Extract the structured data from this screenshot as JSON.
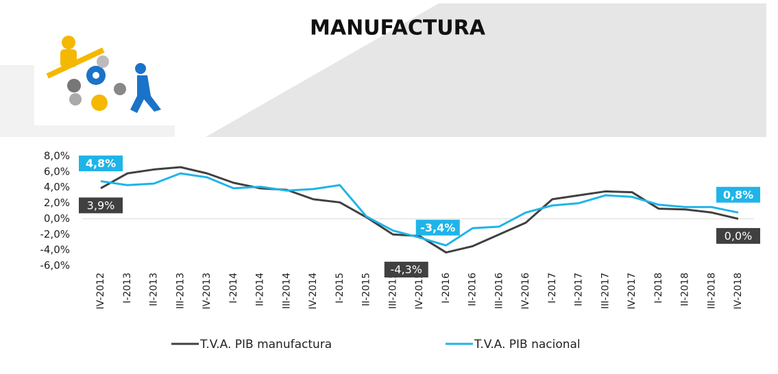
{
  "chart_data": {
    "type": "line",
    "title": "MANUFACTURA",
    "categories": [
      "IV-2012",
      "I-2013",
      "II-2013",
      "III-2013",
      "IV-2013",
      "I-2014",
      "II-2014",
      "III-2014",
      "IV-2014",
      "I-2015",
      "II-2015",
      "III-2015",
      "IV-2015",
      "I-2016",
      "II-2016",
      "III-2016",
      "IV-2016",
      "I-2017",
      "II-2017",
      "III-2017",
      "IV-2017",
      "I-2018",
      "II-2018",
      "III-2018",
      "IV-2018"
    ],
    "series": [
      {
        "name": "T.V.A. PIB manufactura",
        "color": "#404040",
        "values": [
          3.9,
          5.8,
          6.3,
          6.6,
          5.8,
          4.6,
          3.9,
          3.7,
          2.5,
          2.1,
          0.2,
          -2.0,
          -2.2,
          -4.3,
          -3.5,
          -2.0,
          -0.5,
          2.5,
          3.0,
          3.5,
          3.4,
          1.3,
          1.2,
          0.8,
          0.0
        ],
        "value_labels": [
          "3,9%",
          null,
          null,
          null,
          null,
          null,
          null,
          null,
          null,
          null,
          null,
          null,
          null,
          "-4,3%",
          null,
          null,
          null,
          null,
          null,
          null,
          null,
          null,
          null,
          null,
          "0,0%"
        ]
      },
      {
        "name": "T.V.A. PIB nacional",
        "color": "#1fb4e8",
        "values": [
          4.8,
          4.3,
          4.5,
          5.8,
          5.3,
          3.9,
          4.1,
          3.6,
          3.8,
          4.3,
          0.3,
          -1.5,
          -2.4,
          -3.4,
          -1.2,
          -1.0,
          0.8,
          1.7,
          2.0,
          3.0,
          2.8,
          1.8,
          1.5,
          1.5,
          0.8
        ],
        "value_labels": [
          "4,8%",
          null,
          null,
          null,
          null,
          null,
          null,
          null,
          null,
          null,
          null,
          null,
          null,
          "-3,4%",
          null,
          null,
          null,
          null,
          null,
          null,
          null,
          null,
          null,
          null,
          "0,8%"
        ]
      }
    ],
    "ylim": [
      -6,
      8
    ],
    "yticks": [
      {
        "value": -6,
        "label": "-6,0%"
      },
      {
        "value": -4,
        "label": "-4,0%"
      },
      {
        "value": -2,
        "label": "-2,0%"
      },
      {
        "value": 0,
        "label": "0,0%"
      },
      {
        "value": 2,
        "label": "2,0%"
      },
      {
        "value": 4,
        "label": "4,0%"
      },
      {
        "value": 6,
        "label": "6,0%"
      },
      {
        "value": 8,
        "label": "8,0%"
      }
    ]
  }
}
